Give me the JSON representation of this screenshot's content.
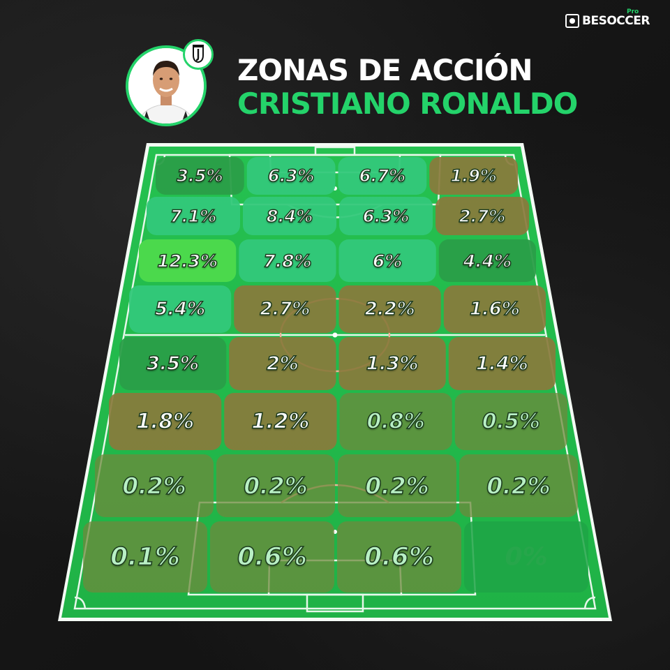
{
  "brand": {
    "name": "BESOCCER",
    "tag": "Pro",
    "icon": "besoccer-logo-icon"
  },
  "player": {
    "photo": "player-photo",
    "club_badge": "juventus-badge-icon"
  },
  "title": {
    "line1": "ZONAS DE ACCIÓN",
    "line2": "CRISTIANO RONALDO"
  },
  "colors": {
    "accent": "#24d36a",
    "pitch": "#22b94a",
    "line": "#e7f7ea",
    "arc": "#e9b49a"
  },
  "zones": [
    [
      "3.5%",
      "6.3%",
      "6.7%",
      "1.9%"
    ],
    [
      "7.1%",
      "8.4%",
      "6.3%",
      "2.7%"
    ],
    [
      "12.3%",
      "7.8%",
      "6%",
      "4.4%"
    ],
    [
      "5.4%",
      "2.7%",
      "2.2%",
      "1.6%"
    ],
    [
      "3.5%",
      "2%",
      "1.3%",
      "1.4%"
    ],
    [
      "1.8%",
      "1.2%",
      "0.8%",
      "0.5%"
    ],
    [
      "0.2%",
      "0.2%",
      "0.2%",
      "0.2%"
    ],
    [
      "0.1%",
      "0.6%",
      "0.6%",
      "0%"
    ]
  ]
}
